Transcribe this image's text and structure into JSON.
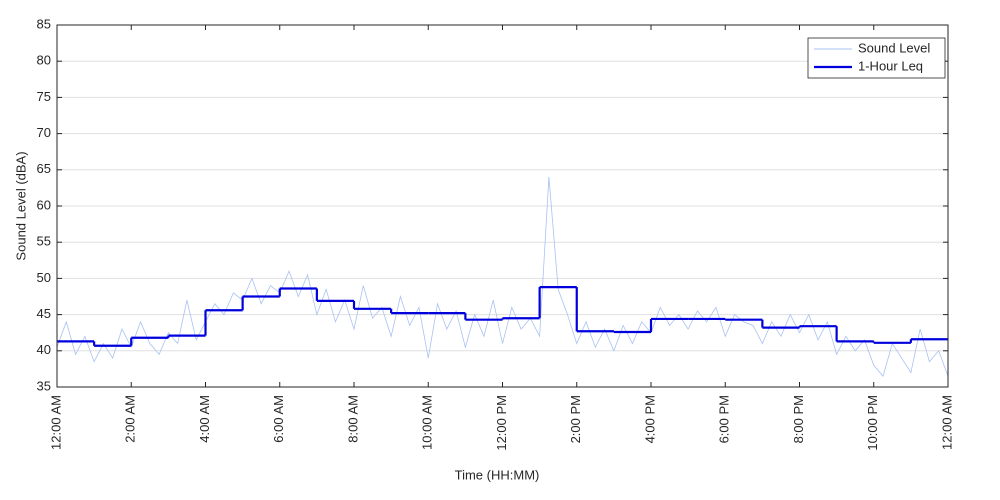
{
  "chart_data": {
    "type": "line",
    "xlabel": "Time (HH:MM)",
    "ylabel": "Sound Level (dBA)",
    "xlim": [
      0,
      24
    ],
    "ylim": [
      35,
      85
    ],
    "xticks": [
      {
        "value": 0,
        "label": "12:00 AM"
      },
      {
        "value": 2,
        "label": "2:00 AM"
      },
      {
        "value": 4,
        "label": "4:00 AM"
      },
      {
        "value": 6,
        "label": "6:00 AM"
      },
      {
        "value": 8,
        "label": "8:00 AM"
      },
      {
        "value": 10,
        "label": "10:00 AM"
      },
      {
        "value": 12,
        "label": "12:00 PM"
      },
      {
        "value": 14,
        "label": "2:00 PM"
      },
      {
        "value": 16,
        "label": "4:00 PM"
      },
      {
        "value": 18,
        "label": "6:00 PM"
      },
      {
        "value": 20,
        "label": "8:00 PM"
      },
      {
        "value": 22,
        "label": "10:00 PM"
      },
      {
        "value": 24,
        "label": "12:00 AM"
      }
    ],
    "yticks": [
      35,
      40,
      45,
      50,
      55,
      60,
      65,
      70,
      75,
      80,
      85
    ],
    "grid": true,
    "legend": "upper right",
    "series": [
      {
        "name": "Sound Level",
        "color": "#a9c1f2",
        "step": false,
        "x": [
          0,
          0.25,
          0.5,
          0.75,
          1,
          1.25,
          1.5,
          1.75,
          2,
          2.25,
          2.5,
          2.75,
          3,
          3.25,
          3.5,
          3.75,
          4,
          4.25,
          4.5,
          4.75,
          5,
          5.25,
          5.5,
          5.75,
          6,
          6.25,
          6.5,
          6.75,
          7,
          7.25,
          7.5,
          7.75,
          8,
          8.25,
          8.5,
          8.75,
          9,
          9.25,
          9.5,
          9.75,
          10,
          10.25,
          10.5,
          10.75,
          11,
          11.25,
          11.5,
          11.75,
          12,
          12.25,
          12.5,
          12.75,
          13,
          13.25,
          13.5,
          13.75,
          14,
          14.25,
          14.5,
          14.75,
          15,
          15.25,
          15.5,
          15.75,
          16,
          16.25,
          16.5,
          16.75,
          17,
          17.25,
          17.5,
          17.75,
          18,
          18.25,
          18.5,
          18.75,
          19,
          19.25,
          19.5,
          19.75,
          20,
          20.25,
          20.5,
          20.75,
          21,
          21.25,
          21.5,
          21.75,
          22,
          22.25,
          22.5,
          22.75,
          23,
          23.25,
          23.5,
          23.75,
          24
        ],
        "values": [
          40.5,
          44,
          39.5,
          42,
          38.5,
          41,
          39,
          43,
          40.5,
          44,
          41,
          39.5,
          42.5,
          41,
          47,
          41.5,
          44,
          46.5,
          45,
          48,
          47,
          50,
          46.5,
          49,
          48,
          51,
          47.5,
          50.5,
          45,
          48.5,
          44,
          47,
          43,
          49,
          44.5,
          46,
          42,
          47.5,
          43.5,
          46,
          39,
          46.5,
          43,
          45.5,
          40.5,
          45,
          42,
          47,
          41,
          46,
          43,
          44.5,
          42,
          64,
          48.5,
          45,
          41,
          44,
          40.5,
          43,
          40,
          43.5,
          41,
          44,
          42.5,
          46,
          43.5,
          45,
          43,
          45.5,
          44,
          46,
          42,
          45,
          44,
          43.5,
          41,
          44,
          42,
          45,
          42.5,
          45,
          41.5,
          44,
          39.5,
          42,
          40,
          41.5,
          38,
          36.5,
          41,
          39,
          37,
          43,
          38.5,
          40,
          36.5
        ]
      },
      {
        "name": "1-Hour Leq",
        "color": "#0000dd",
        "step": true,
        "x": [
          0,
          1,
          2,
          3,
          4,
          5,
          6,
          7,
          8,
          9,
          10,
          11,
          12,
          13,
          14,
          15,
          16,
          17,
          18,
          19,
          20,
          21,
          22,
          23
        ],
        "values": [
          41.3,
          40.7,
          41.8,
          42.1,
          45.6,
          47.5,
          48.6,
          46.9,
          45.8,
          45.2,
          45.2,
          44.3,
          44.5,
          48.8,
          42.7,
          42.6,
          44.4,
          44.4,
          44.3,
          43.2,
          43.4,
          41.3,
          41.1,
          41.6
        ]
      }
    ]
  }
}
